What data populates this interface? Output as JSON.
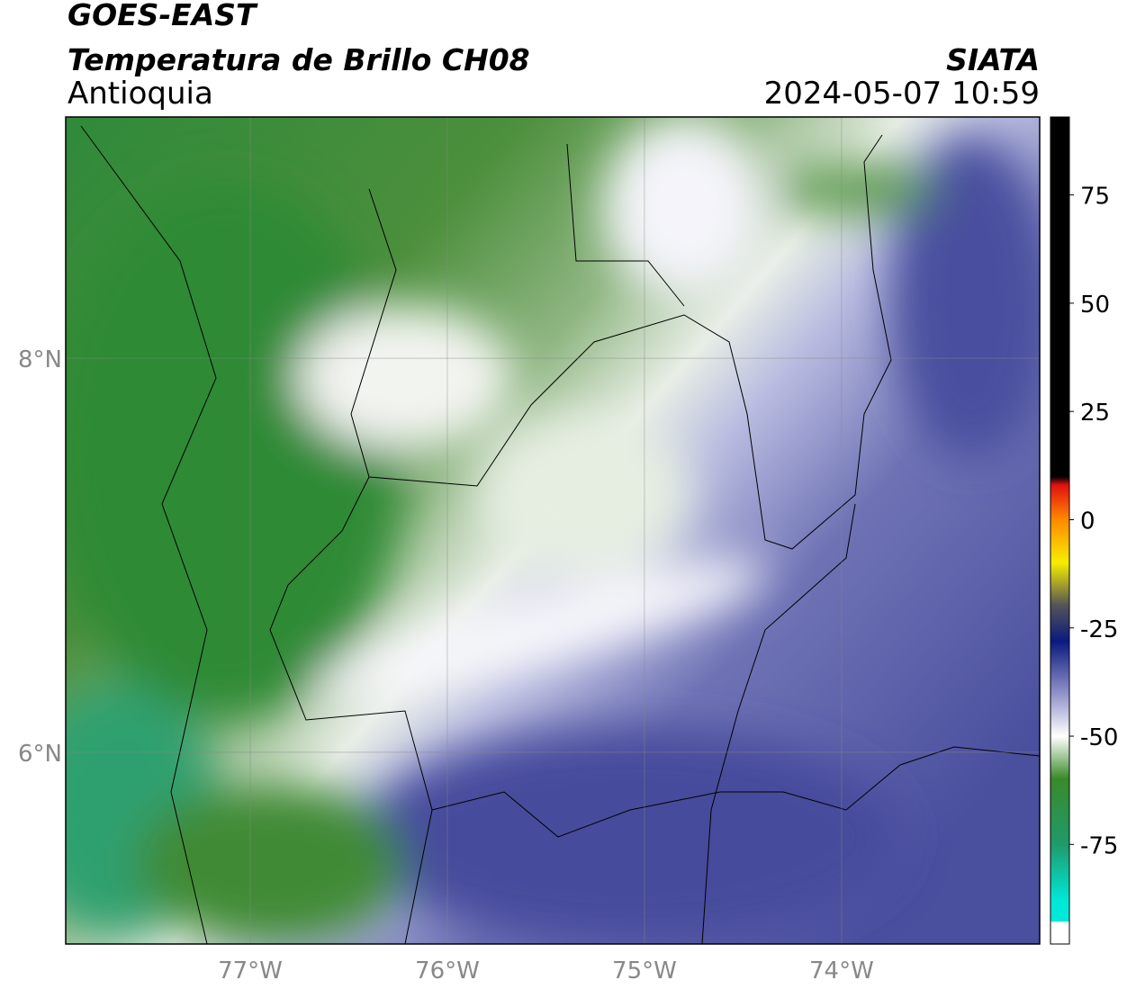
{
  "header": {
    "title": "GOES-EAST",
    "subtitle": "Temperatura de Brillo CH08",
    "region": "Antioquia",
    "source": "SIATA",
    "datetime": "2024-05-07 10:59"
  },
  "map": {
    "xlim": [
      -77.936,
      -72.995
    ],
    "ylim": [
      5.027,
      9.224
    ],
    "xticks": [
      {
        "value": -77,
        "label": "77°W"
      },
      {
        "value": -76,
        "label": "76°W"
      },
      {
        "value": -75,
        "label": "75°W"
      },
      {
        "value": -74,
        "label": "74°W"
      }
    ],
    "yticks": [
      {
        "value": 8,
        "label": "8°N"
      },
      {
        "value": 6,
        "label": "6°N"
      }
    ],
    "grid": true
  },
  "colorbar": {
    "lim": [
      -98,
      93
    ],
    "ticks": [
      75,
      50,
      25,
      0,
      -25,
      -50,
      -75
    ]
  }
}
